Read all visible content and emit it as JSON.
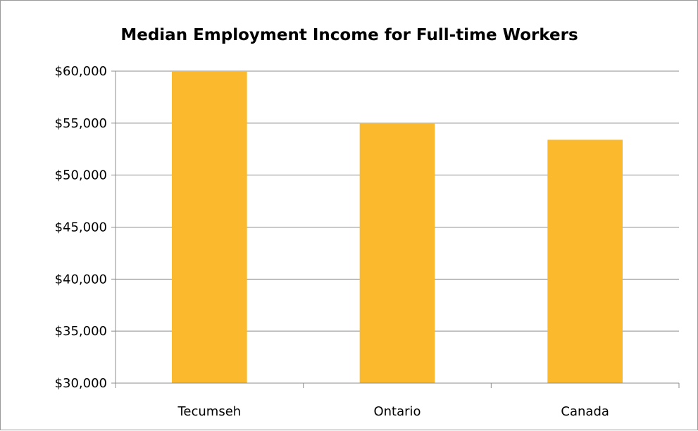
{
  "chart_data": {
    "type": "bar",
    "title": "Median Employment Income for Full-time Workers",
    "xlabel": "",
    "ylabel": "",
    "categories": [
      "Tecumseh",
      "Ontario",
      "Canada"
    ],
    "values": [
      60000,
      55000,
      53400
    ],
    "ylim": [
      30000,
      60000
    ],
    "yticks": [
      30000,
      35000,
      40000,
      45000,
      50000,
      55000,
      60000
    ],
    "ytick_labels": [
      "$30,000",
      "$35,000",
      "$40,000",
      "$45,000",
      "$50,000",
      "$55,000",
      "$60,000"
    ],
    "grid": true,
    "legend": "none",
    "bar_color": "#FBBA2D"
  }
}
